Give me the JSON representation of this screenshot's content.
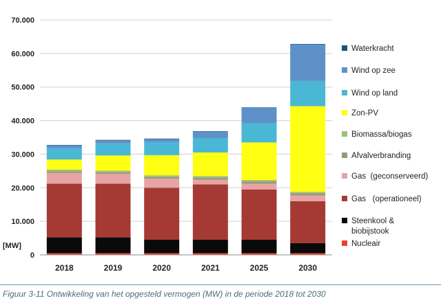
{
  "caption": "Figuur 3-11 Ontwikkeling van het opgesteld vermogen (MW) in de periode 2018 tot 2030",
  "chart_data": {
    "type": "bar",
    "stacked": true,
    "ylabel": "[MW]",
    "ylim": [
      0,
      70000
    ],
    "yticks": [
      "0",
      "10.000",
      "20.000",
      "30.000",
      "40.000",
      "50.000",
      "60.000",
      "70.000"
    ],
    "grid": true,
    "legend_position": "right",
    "categories": [
      "2018",
      "2019",
      "2020",
      "2021",
      "2025",
      "2030"
    ],
    "series": [
      {
        "name": "Nucleair",
        "color": "#e8442d",
        "values": [
          500,
          500,
          500,
          500,
          500,
          500
        ]
      },
      {
        "name": "Steenkool & biobijstook",
        "color": "#0a0a0a",
        "values": [
          4700,
          4700,
          4000,
          4000,
          4000,
          3000
        ]
      },
      {
        "name": "Gas   (operationeel)",
        "color": "#a53a34",
        "values": [
          16000,
          16000,
          15500,
          16500,
          15000,
          12500
        ]
      },
      {
        "name": "Gas  (geconserveerd)",
        "color": "#e6a4a4",
        "values": [
          3200,
          2900,
          2700,
          1400,
          1700,
          1700
        ]
      },
      {
        "name": "Afvalverbranding",
        "color": "#9e9779",
        "values": [
          500,
          500,
          500,
          600,
          600,
          600
        ]
      },
      {
        "name": "Biomassa/biogas",
        "color": "#9cc27a",
        "values": [
          500,
          500,
          500,
          500,
          500,
          500
        ]
      },
      {
        "name": "Zon-PV",
        "color": "#ffff14",
        "values": [
          3000,
          4500,
          6000,
          7000,
          11200,
          25500
        ]
      },
      {
        "name": "Wind op land",
        "color": "#4ab8d4",
        "values": [
          3400,
          3600,
          3900,
          4300,
          5700,
          7500
        ]
      },
      {
        "name": "Wind op zee",
        "color": "#5f91c9",
        "values": [
          900,
          1000,
          1000,
          2000,
          4700,
          11000
        ]
      },
      {
        "name": "Waterkracht",
        "color": "#17567d",
        "values": [
          40,
          40,
          40,
          40,
          40,
          40
        ]
      }
    ]
  }
}
